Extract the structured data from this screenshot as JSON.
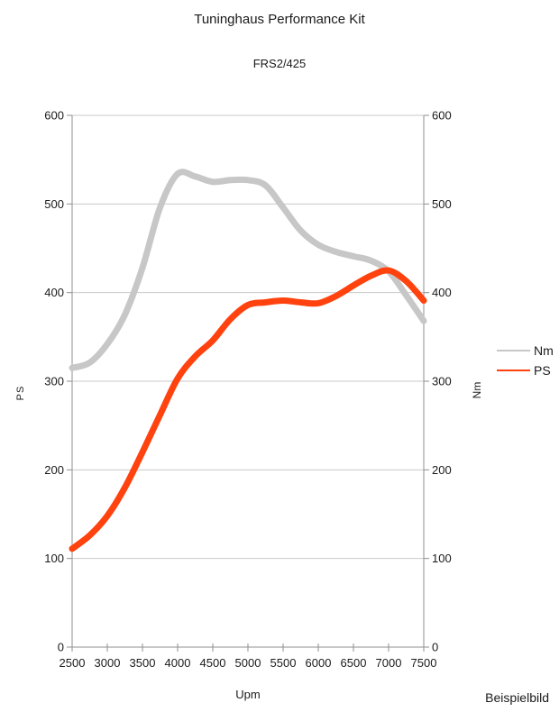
{
  "chart_data": {
    "type": "line",
    "title": "Tuninghaus Performance Kit",
    "subtitle": "FRS2/425",
    "xlabel": "Upm",
    "ylabel_left": "PS",
    "ylabel_right": "Nm",
    "footnote": "Beispielbild",
    "xlim": [
      2500,
      7500
    ],
    "ylim": [
      0,
      600
    ],
    "x_ticks": [
      2500,
      3000,
      3500,
      4000,
      4500,
      5000,
      5500,
      6000,
      6500,
      7000,
      7500
    ],
    "y_ticks": [
      0,
      100,
      200,
      300,
      400,
      500,
      600
    ],
    "grid": true,
    "legend_position": "right",
    "colors": {
      "grid": "#c9c9c9",
      "axis": "#8f8f8f",
      "text": "#1a1a1a",
      "nm": "#c7c7c7",
      "ps": "#ff420e"
    },
    "x": [
      2500,
      2750,
      3000,
      3250,
      3500,
      3750,
      4000,
      4250,
      4500,
      4750,
      5000,
      5250,
      5500,
      5750,
      6000,
      6250,
      6500,
      6750,
      7000,
      7250,
      7500
    ],
    "series": [
      {
        "name": "Nm",
        "color": "#c7c7c7",
        "values": [
          315,
          321,
          342,
          375,
          428,
          496,
          534,
          531,
          525,
          527,
          527,
          521,
          496,
          470,
          454,
          446,
          441,
          436,
          424,
          397,
          368
        ]
      },
      {
        "name": "PS",
        "color": "#ff420e",
        "values": [
          111,
          126,
          148,
          180,
          220,
          262,
          303,
          328,
          346,
          370,
          386,
          389,
          391,
          389,
          388,
          396,
          408,
          419,
          425,
          413,
          391
        ]
      }
    ]
  }
}
